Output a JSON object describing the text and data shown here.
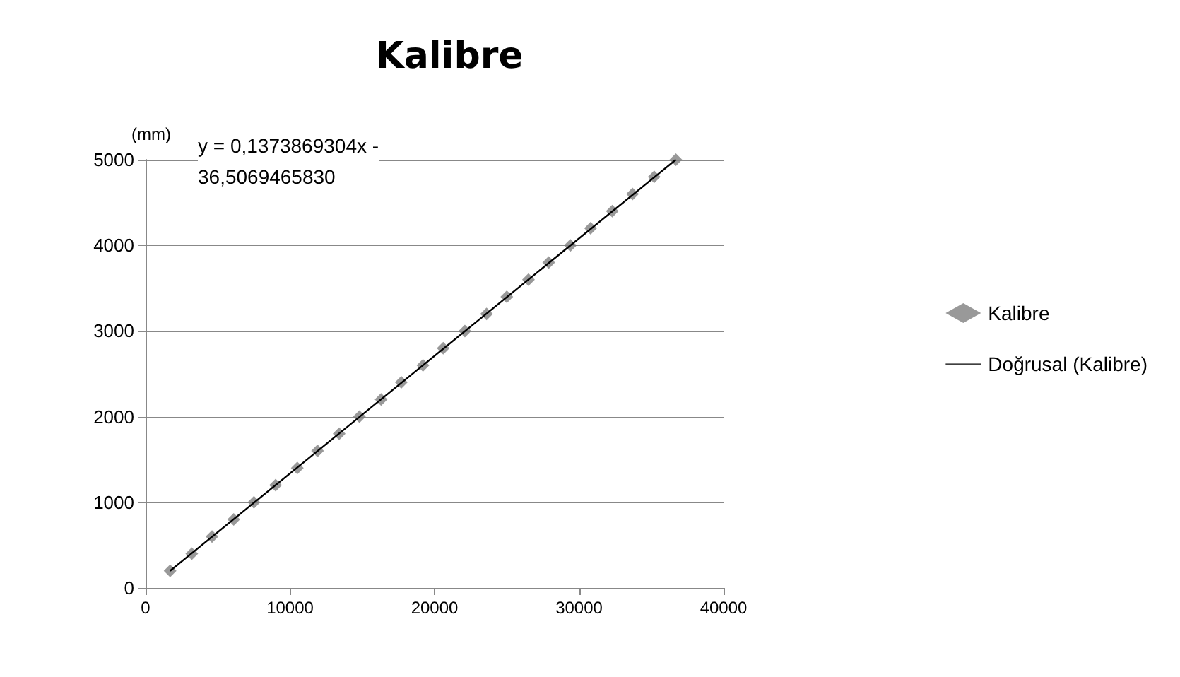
{
  "chart_data": {
    "type": "scatter",
    "title": "Kalibre",
    "ylabel": "(mm)",
    "annotations": [
      "y = 0,1373869304x -\n36,5069465830"
    ],
    "xlim": [
      0,
      40000
    ],
    "xticks": [
      0,
      10000,
      20000,
      30000,
      40000
    ],
    "ylim": [
      0,
      5000
    ],
    "yticks": [
      0,
      1000,
      2000,
      3000,
      4000,
      5000
    ],
    "grid": "y",
    "legend": "right",
    "series": [
      {
        "name": "Kalibre",
        "marker": "diamond",
        "color": "#808080",
        "x": [
          1700,
          3200,
          4600,
          6100,
          7500,
          9000,
          10500,
          11900,
          13400,
          14800,
          16300,
          17700,
          19200,
          20600,
          22100,
          23600,
          25000,
          26500,
          27900,
          29400,
          30800,
          32300,
          33700,
          35200,
          36700
        ],
        "values": [
          200,
          400,
          600,
          800,
          1000,
          1200,
          1400,
          1600,
          1800,
          2000,
          2200,
          2400,
          2600,
          2800,
          3000,
          3200,
          3400,
          3600,
          3800,
          4000,
          4200,
          4400,
          4600,
          4800,
          5000
        ]
      },
      {
        "name": "Doğrusal (Kalibre)",
        "type": "line",
        "marker": "none",
        "color": "#000000",
        "x": [
          1700,
          36700
        ],
        "values": [
          200,
          5000
        ]
      }
    ]
  }
}
